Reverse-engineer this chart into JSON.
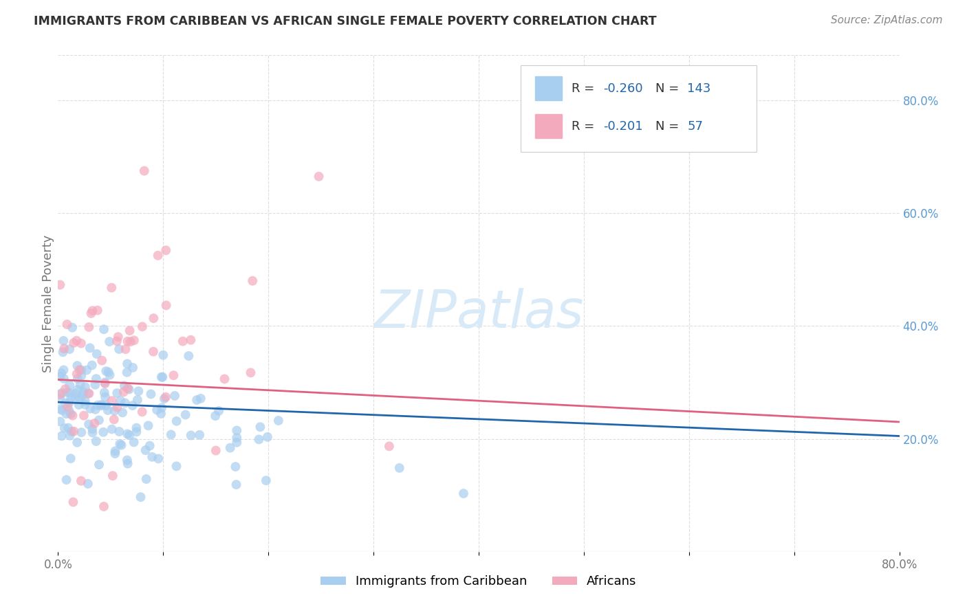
{
  "title": "IMMIGRANTS FROM CARIBBEAN VS AFRICAN SINGLE FEMALE POVERTY CORRELATION CHART",
  "source": "Source: ZipAtlas.com",
  "ylabel": "Single Female Poverty",
  "xlim": [
    0.0,
    0.8
  ],
  "ylim": [
    0.0,
    0.88
  ],
  "yticks_right": [
    0.2,
    0.4,
    0.6,
    0.8
  ],
  "ytick_labels_right": [
    "20.0%",
    "40.0%",
    "60.0%",
    "80.0%"
  ],
  "xtick_labels": [
    "0.0%",
    "",
    "",
    "",
    "",
    "",
    "",
    "",
    "80.0%"
  ],
  "series1_color": "#A8CEF0",
  "series2_color": "#F4AABD",
  "line1_color": "#2166AC",
  "line2_color": "#E06080",
  "watermark_color": "#D8EAF8",
  "background_color": "#FFFFFF",
  "grid_color": "#DDDDDD",
  "right_tick_color": "#5B9BD5",
  "title_color": "#333333",
  "source_color": "#888888",
  "legend_text_dark": "#333333",
  "legend_text_blue": "#2166AC",
  "legend_r1": "-0.260",
  "legend_n1": "143",
  "legend_r2": "-0.201",
  "legend_n2": "57",
  "point_size": 100,
  "point_alpha": 0.7,
  "line_width": 2.0,
  "title_fontsize": 12.5,
  "source_fontsize": 11,
  "tick_fontsize": 12,
  "legend_fontsize": 13,
  "ylabel_fontsize": 13
}
